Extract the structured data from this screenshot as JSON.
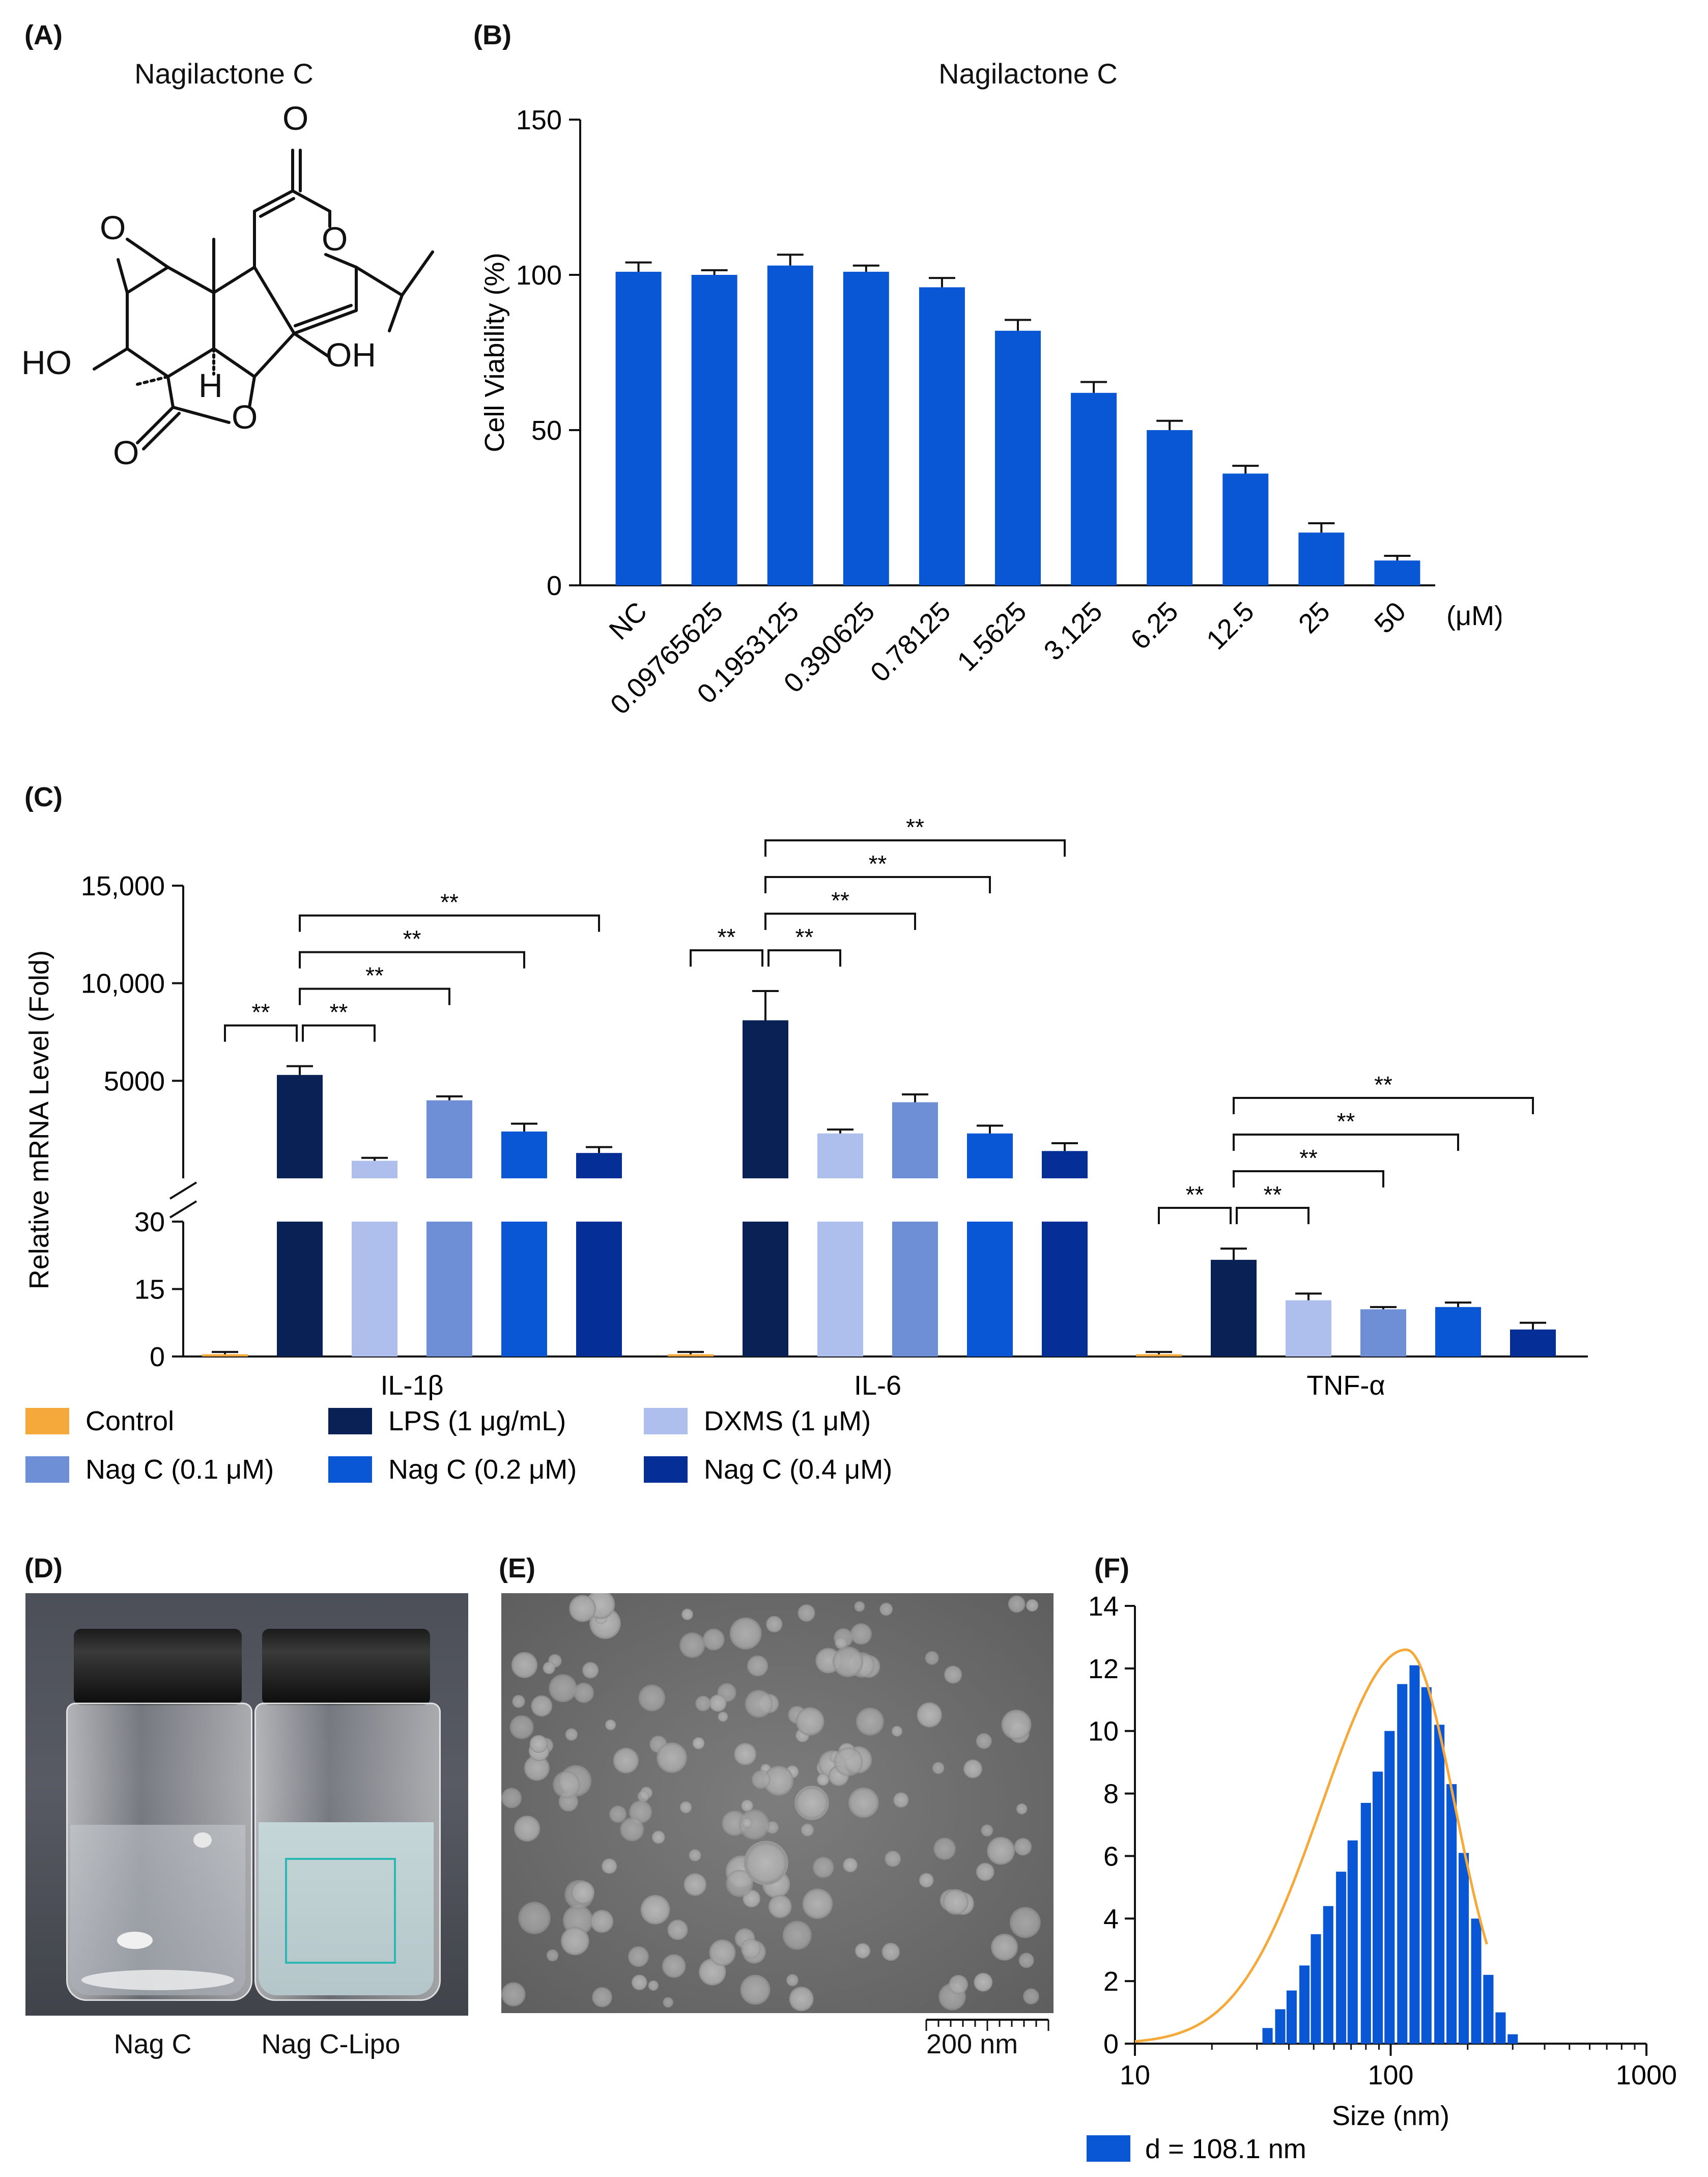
{
  "panels": {
    "A": {
      "label": "(A)",
      "title": "Nagilactone C",
      "atoms": {
        "o_top": "O",
        "o_ring": "O",
        "o_epox": "O",
        "ho": "HO",
        "oh": "OH",
        "h": "H",
        "o_bottom": "O",
        "o_lactone": "O"
      }
    },
    "B": {
      "label": "(B)",
      "title": "Nagilactone C"
    },
    "C": {
      "label": "(C)"
    },
    "D": {
      "label": "(D)",
      "captions": [
        "Nag C",
        "Nag C-Lipo"
      ]
    },
    "E": {
      "label": "(E)",
      "scale_bar": "200 nm"
    },
    "F": {
      "label": "(F)"
    }
  },
  "colors": {
    "control": "#f5a93a",
    "lps": "#0a2155",
    "dxms": "#aebfee",
    "nag01": "#6e8fd6",
    "nag02": "#0a57d6",
    "nag04": "#052f96",
    "bar_blue": "#0a57d6",
    "fit_orange": "#f5a93a"
  },
  "chart_data": [
    {
      "id": "B",
      "type": "bar",
      "title": "Nagilactone C",
      "ylabel": "Cell Viability (%)",
      "xunit": "(μM)",
      "ylim": [
        0,
        150
      ],
      "yticks": [
        0,
        50,
        100,
        150
      ],
      "categories": [
        "NC",
        "0.09765625",
        "0.1953125",
        "0.390625",
        "0.78125",
        "1.5625",
        "3.125",
        "6.25",
        "12.5",
        "25",
        "50"
      ],
      "values": [
        101,
        100,
        103,
        101,
        96,
        82,
        62,
        50,
        36,
        17,
        8
      ],
      "errors": [
        3,
        1.5,
        3.5,
        2,
        3,
        3.5,
        3.5,
        3,
        2.5,
        3,
        1.5
      ]
    },
    {
      "id": "C",
      "type": "bar",
      "ylabel": "Relative mRNA Level (Fold)",
      "groups": [
        "IL-1β",
        "IL-6",
        "TNF-α"
      ],
      "series_names": [
        "Control",
        "LPS (1 μg/mL)",
        "DXMS (1 μM)",
        "Nag C (0.1 μM)",
        "Nag C (0.2 μM)",
        "Nag C (0.4 μM)"
      ],
      "lower_axis": {
        "ylim": [
          0,
          30
        ],
        "yticks": [
          "0",
          "15",
          "30"
        ]
      },
      "upper_axis": {
        "ylim": [
          0,
          15000
        ],
        "yticks": [
          "5000",
          "10,000",
          "15,000"
        ]
      },
      "values": [
        [
          0.5,
          5300,
          900,
          4000,
          2400,
          1300
        ],
        [
          0.5,
          8100,
          2300,
          3900,
          2300,
          1400
        ],
        [
          0.5,
          21.5,
          12.5,
          10.5,
          11,
          6
        ]
      ],
      "errors": [
        [
          0.5,
          450,
          150,
          200,
          400,
          300
        ],
        [
          0.5,
          1500,
          200,
          400,
          400,
          400
        ],
        [
          0.5,
          2.5,
          1.5,
          0.5,
          1,
          1.5
        ]
      ],
      "significance": "**"
    },
    {
      "id": "F",
      "type": "bar",
      "xlabel": "Size (nm)",
      "xscale": "log",
      "xlim": [
        10,
        1000
      ],
      "xticks": [
        "10",
        "100",
        "1000"
      ],
      "ylim": [
        0,
        14
      ],
      "yticks": [
        "0",
        "2",
        "4",
        "6",
        "8",
        "10",
        "12",
        "14"
      ],
      "x": [
        33,
        37,
        41,
        46,
        51,
        57,
        64,
        71,
        80,
        89,
        99,
        111,
        124,
        138,
        155,
        173,
        193,
        216,
        241,
        269,
        300
      ],
      "values": [
        0.5,
        1.1,
        1.7,
        2.5,
        3.5,
        4.4,
        5.5,
        6.5,
        7.7,
        8.7,
        10.0,
        11.5,
        12.1,
        11.4,
        10.2,
        8.3,
        6.1,
        4.0,
        2.2,
        1.0,
        0.3
      ],
      "fit_curve": "log-normal fit",
      "legend": "d = 108.1 nm"
    }
  ]
}
